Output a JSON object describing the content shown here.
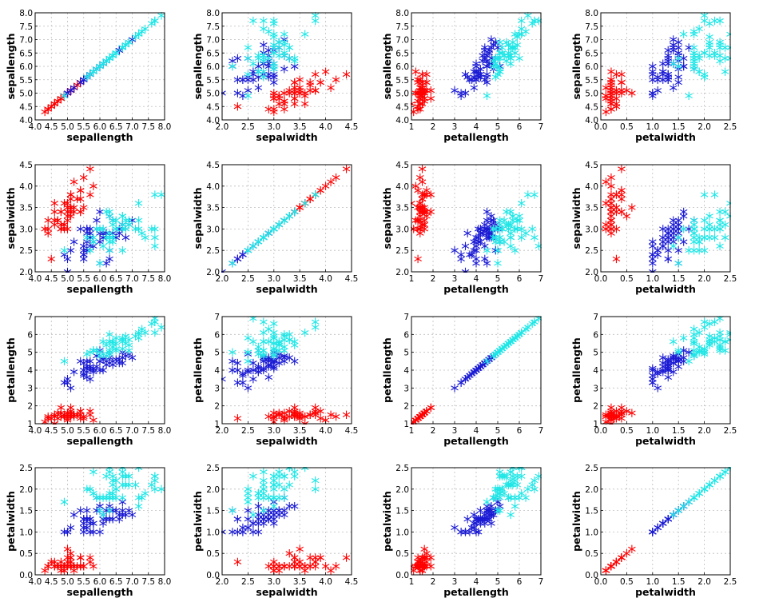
{
  "chart_data": {
    "type": "scatter",
    "title": "",
    "variables": [
      {
        "key": "sepallength",
        "label": "sepallength",
        "range": [
          4.0,
          8.0
        ],
        "ticks": [
          "4.0",
          "4.5",
          "5.0",
          "5.5",
          "6.0",
          "6.5",
          "7.0",
          "7.5",
          "8.0"
        ]
      },
      {
        "key": "sepalwidth",
        "label": "sepalwidth",
        "range": [
          2.0,
          4.5
        ],
        "ticks": [
          "2.0",
          "2.5",
          "3.0",
          "3.5",
          "4.0",
          "4.5"
        ]
      },
      {
        "key": "petallength",
        "label": "petallength",
        "range": [
          1,
          7
        ],
        "ticks": [
          "1",
          "2",
          "3",
          "4",
          "5",
          "6",
          "7"
        ]
      },
      {
        "key": "petalwidth",
        "label": "petalwidth",
        "range": [
          0.0,
          2.5
        ],
        "ticks": [
          "0.0",
          "0.5",
          "1.0",
          "1.5",
          "2.0",
          "2.5"
        ]
      }
    ],
    "marker": "asterisk",
    "grid": true,
    "series": [
      {
        "color": "#ff0000",
        "points": [
          [
            5.1,
            3.5,
            1.4,
            0.2
          ],
          [
            4.9,
            3.0,
            1.4,
            0.2
          ],
          [
            4.7,
            3.2,
            1.3,
            0.2
          ],
          [
            4.6,
            3.1,
            1.5,
            0.2
          ],
          [
            5.0,
            3.6,
            1.4,
            0.2
          ],
          [
            5.4,
            3.9,
            1.7,
            0.4
          ],
          [
            4.6,
            3.4,
            1.4,
            0.3
          ],
          [
            5.0,
            3.4,
            1.5,
            0.2
          ],
          [
            4.4,
            2.9,
            1.4,
            0.2
          ],
          [
            4.9,
            3.1,
            1.5,
            0.1
          ],
          [
            5.4,
            3.7,
            1.5,
            0.2
          ],
          [
            4.8,
            3.4,
            1.6,
            0.2
          ],
          [
            4.8,
            3.0,
            1.4,
            0.1
          ],
          [
            4.3,
            3.0,
            1.1,
            0.1
          ],
          [
            5.8,
            4.0,
            1.2,
            0.2
          ],
          [
            5.7,
            4.4,
            1.5,
            0.4
          ],
          [
            5.4,
            3.9,
            1.3,
            0.4
          ],
          [
            5.1,
            3.5,
            1.4,
            0.3
          ],
          [
            5.7,
            3.8,
            1.7,
            0.3
          ],
          [
            5.1,
            3.8,
            1.5,
            0.3
          ],
          [
            5.4,
            3.4,
            1.7,
            0.2
          ],
          [
            5.1,
            3.7,
            1.5,
            0.4
          ],
          [
            4.6,
            3.6,
            1.0,
            0.2
          ],
          [
            5.1,
            3.3,
            1.7,
            0.5
          ],
          [
            4.8,
            3.4,
            1.9,
            0.2
          ],
          [
            5.0,
            3.0,
            1.6,
            0.2
          ],
          [
            5.0,
            3.4,
            1.6,
            0.4
          ],
          [
            5.2,
            3.5,
            1.5,
            0.2
          ],
          [
            5.2,
            3.4,
            1.4,
            0.2
          ],
          [
            4.7,
            3.2,
            1.6,
            0.2
          ],
          [
            4.8,
            3.1,
            1.6,
            0.2
          ],
          [
            5.4,
            3.4,
            1.5,
            0.4
          ],
          [
            5.2,
            4.1,
            1.5,
            0.1
          ],
          [
            5.5,
            4.2,
            1.4,
            0.2
          ],
          [
            4.9,
            3.1,
            1.5,
            0.2
          ],
          [
            5.0,
            3.2,
            1.2,
            0.2
          ],
          [
            5.5,
            3.5,
            1.3,
            0.2
          ],
          [
            4.9,
            3.6,
            1.4,
            0.1
          ],
          [
            4.4,
            3.0,
            1.3,
            0.2
          ],
          [
            5.1,
            3.4,
            1.5,
            0.2
          ],
          [
            5.0,
            3.5,
            1.3,
            0.3
          ],
          [
            4.5,
            2.3,
            1.3,
            0.3
          ],
          [
            4.4,
            3.2,
            1.3,
            0.2
          ],
          [
            5.0,
            3.5,
            1.6,
            0.6
          ],
          [
            5.1,
            3.8,
            1.9,
            0.4
          ],
          [
            4.8,
            3.0,
            1.4,
            0.3
          ],
          [
            5.1,
            3.8,
            1.6,
            0.2
          ],
          [
            4.6,
            3.2,
            1.4,
            0.2
          ],
          [
            5.3,
            3.7,
            1.5,
            0.2
          ],
          [
            5.0,
            3.3,
            1.4,
            0.2
          ]
        ]
      },
      {
        "color": "#1a1ad4",
        "points": [
          [
            7.0,
            3.2,
            4.7,
            1.4
          ],
          [
            6.4,
            3.2,
            4.5,
            1.5
          ],
          [
            6.9,
            3.1,
            4.9,
            1.5
          ],
          [
            5.5,
            2.3,
            4.0,
            1.3
          ],
          [
            6.5,
            2.8,
            4.6,
            1.5
          ],
          [
            5.7,
            2.8,
            4.5,
            1.3
          ],
          [
            6.3,
            3.3,
            4.7,
            1.6
          ],
          [
            4.9,
            2.4,
            3.3,
            1.0
          ],
          [
            6.6,
            2.9,
            4.6,
            1.3
          ],
          [
            5.2,
            2.7,
            3.9,
            1.4
          ],
          [
            5.0,
            2.0,
            3.5,
            1.0
          ],
          [
            5.9,
            3.0,
            4.2,
            1.5
          ],
          [
            6.0,
            2.2,
            4.0,
            1.0
          ],
          [
            6.1,
            2.9,
            4.7,
            1.4
          ],
          [
            5.6,
            2.9,
            3.6,
            1.3
          ],
          [
            6.7,
            3.1,
            4.4,
            1.4
          ],
          [
            5.6,
            3.0,
            4.5,
            1.5
          ],
          [
            5.8,
            2.7,
            4.1,
            1.0
          ],
          [
            6.2,
            2.2,
            4.5,
            1.5
          ],
          [
            5.6,
            2.5,
            3.9,
            1.1
          ],
          [
            5.9,
            3.2,
            4.8,
            1.8
          ],
          [
            6.1,
            2.8,
            4.0,
            1.3
          ],
          [
            6.3,
            2.5,
            4.9,
            1.5
          ],
          [
            6.1,
            2.8,
            4.7,
            1.2
          ],
          [
            6.4,
            2.9,
            4.3,
            1.3
          ],
          [
            6.6,
            3.0,
            4.4,
            1.4
          ],
          [
            6.8,
            2.8,
            4.8,
            1.4
          ],
          [
            6.7,
            3.0,
            5.0,
            1.7
          ],
          [
            6.0,
            2.9,
            4.5,
            1.5
          ],
          [
            5.7,
            2.6,
            3.5,
            1.0
          ],
          [
            5.5,
            2.4,
            3.8,
            1.1
          ],
          [
            5.5,
            2.4,
            3.7,
            1.0
          ],
          [
            5.8,
            2.7,
            3.9,
            1.2
          ],
          [
            6.0,
            2.7,
            5.1,
            1.6
          ],
          [
            5.4,
            3.0,
            4.5,
            1.5
          ],
          [
            6.0,
            3.4,
            4.5,
            1.6
          ],
          [
            6.7,
            3.1,
            4.7,
            1.5
          ],
          [
            6.3,
            2.3,
            4.4,
            1.3
          ],
          [
            5.6,
            3.0,
            4.1,
            1.3
          ],
          [
            5.5,
            2.5,
            4.0,
            1.3
          ],
          [
            5.5,
            2.6,
            4.4,
            1.2
          ],
          [
            6.1,
            3.0,
            4.6,
            1.4
          ],
          [
            5.8,
            2.6,
            4.0,
            1.2
          ],
          [
            5.0,
            2.3,
            3.3,
            1.0
          ],
          [
            5.6,
            2.7,
            4.2,
            1.3
          ],
          [
            5.7,
            3.0,
            4.2,
            1.2
          ],
          [
            5.7,
            2.9,
            4.2,
            1.3
          ],
          [
            6.2,
            2.9,
            4.3,
            1.3
          ],
          [
            5.1,
            2.5,
            3.0,
            1.1
          ],
          [
            5.7,
            2.8,
            4.1,
            1.3
          ]
        ]
      },
      {
        "color": "#1ee6e6",
        "points": [
          [
            6.3,
            3.3,
            6.0,
            2.5
          ],
          [
            5.8,
            2.7,
            5.1,
            1.9
          ],
          [
            7.1,
            3.0,
            5.9,
            2.1
          ],
          [
            6.3,
            2.9,
            5.6,
            1.8
          ],
          [
            6.5,
            3.0,
            5.8,
            2.2
          ],
          [
            7.6,
            3.0,
            6.6,
            2.1
          ],
          [
            4.9,
            2.5,
            4.5,
            1.7
          ],
          [
            7.3,
            2.9,
            6.3,
            1.8
          ],
          [
            6.7,
            2.5,
            5.8,
            1.8
          ],
          [
            7.2,
            3.6,
            6.1,
            2.5
          ],
          [
            6.5,
            3.2,
            5.1,
            2.0
          ],
          [
            6.4,
            2.7,
            5.3,
            1.9
          ],
          [
            6.8,
            3.0,
            5.5,
            2.1
          ],
          [
            5.7,
            2.5,
            5.0,
            2.0
          ],
          [
            5.8,
            2.8,
            5.1,
            2.4
          ],
          [
            6.4,
            3.2,
            5.3,
            2.3
          ],
          [
            6.5,
            3.0,
            5.5,
            1.8
          ],
          [
            7.7,
            3.8,
            6.7,
            2.2
          ],
          [
            7.7,
            2.6,
            6.9,
            2.3
          ],
          [
            6.0,
            2.2,
            5.0,
            1.5
          ],
          [
            6.9,
            3.2,
            5.7,
            2.3
          ],
          [
            5.6,
            2.8,
            4.9,
            2.0
          ],
          [
            7.7,
            2.8,
            6.7,
            2.0
          ],
          [
            6.3,
            2.7,
            4.9,
            1.8
          ],
          [
            6.7,
            3.3,
            5.7,
            2.1
          ],
          [
            7.2,
            3.2,
            6.0,
            1.8
          ],
          [
            6.2,
            2.8,
            4.8,
            1.8
          ],
          [
            6.1,
            3.0,
            4.9,
            1.8
          ],
          [
            6.4,
            2.8,
            5.6,
            2.1
          ],
          [
            7.2,
            3.0,
            5.8,
            1.6
          ],
          [
            7.4,
            2.8,
            6.1,
            1.9
          ],
          [
            7.9,
            3.8,
            6.4,
            2.0
          ],
          [
            6.4,
            2.8,
            5.6,
            2.2
          ],
          [
            6.3,
            2.8,
            5.1,
            1.5
          ],
          [
            6.1,
            2.6,
            5.6,
            1.4
          ],
          [
            7.7,
            3.0,
            6.1,
            2.3
          ],
          [
            6.3,
            3.4,
            5.6,
            2.4
          ],
          [
            6.4,
            3.1,
            5.5,
            1.8
          ],
          [
            6.0,
            3.0,
            4.8,
            1.8
          ],
          [
            6.9,
            3.1,
            5.4,
            2.1
          ],
          [
            6.7,
            3.1,
            5.6,
            2.4
          ],
          [
            6.9,
            3.1,
            5.1,
            2.3
          ],
          [
            5.8,
            2.7,
            5.1,
            1.9
          ],
          [
            6.8,
            3.2,
            5.9,
            2.3
          ],
          [
            6.7,
            3.3,
            5.7,
            2.5
          ],
          [
            6.7,
            3.0,
            5.2,
            2.3
          ],
          [
            6.3,
            2.5,
            5.0,
            1.9
          ],
          [
            6.5,
            3.0,
            5.2,
            2.0
          ],
          [
            6.2,
            3.4,
            5.4,
            2.3
          ],
          [
            5.9,
            3.0,
            5.1,
            1.8
          ]
        ]
      }
    ]
  }
}
